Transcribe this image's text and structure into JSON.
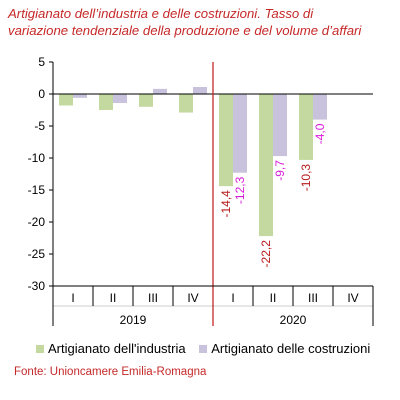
{
  "chart_data": {
    "type": "bar",
    "title_lines": [
      "Artigianato dell’industria e delle costruzioni. Tasso di",
      "variazione tendenziale della produzione e del volume d’affari"
    ],
    "categories": [
      "I",
      "II",
      "III",
      "IV",
      "I",
      "II",
      "III",
      "IV"
    ],
    "groups": [
      {
        "label": "2019",
        "span": 4
      },
      {
        "label": "2020",
        "span": 4
      }
    ],
    "series": [
      {
        "name": "Artigianato dell'industria",
        "color": "#c4d9a0",
        "label_color": "#b71c1c",
        "values": [
          -1.8,
          -2.5,
          -2.0,
          -2.9,
          -14.4,
          -22.2,
          -10.3,
          null
        ],
        "labels": [
          "",
          "",
          "",
          "",
          "-14,4",
          "-22,2",
          "-10,3",
          ""
        ]
      },
      {
        "name": "Artigianato delle costruzioni",
        "color": "#c9c2dc",
        "label_color": "#d81bd8",
        "values": [
          -0.6,
          -1.4,
          0.8,
          1.1,
          -12.3,
          -9.7,
          -4.0,
          null
        ],
        "labels": [
          "",
          "",
          "",
          "",
          "-12,3",
          "-9,7",
          "-4,0",
          ""
        ]
      }
    ],
    "ylim": [
      -30,
      5
    ],
    "yticks": [
      "5",
      "0",
      "-5",
      "-10",
      "-15",
      "-20",
      "-25",
      "-30"
    ],
    "ytick_values": [
      5,
      0,
      -5,
      -10,
      -15,
      -20,
      -25,
      -30
    ],
    "divider_color": "#c62828"
  },
  "source": "Fonte: Unioncamere Emilia-Romagna"
}
